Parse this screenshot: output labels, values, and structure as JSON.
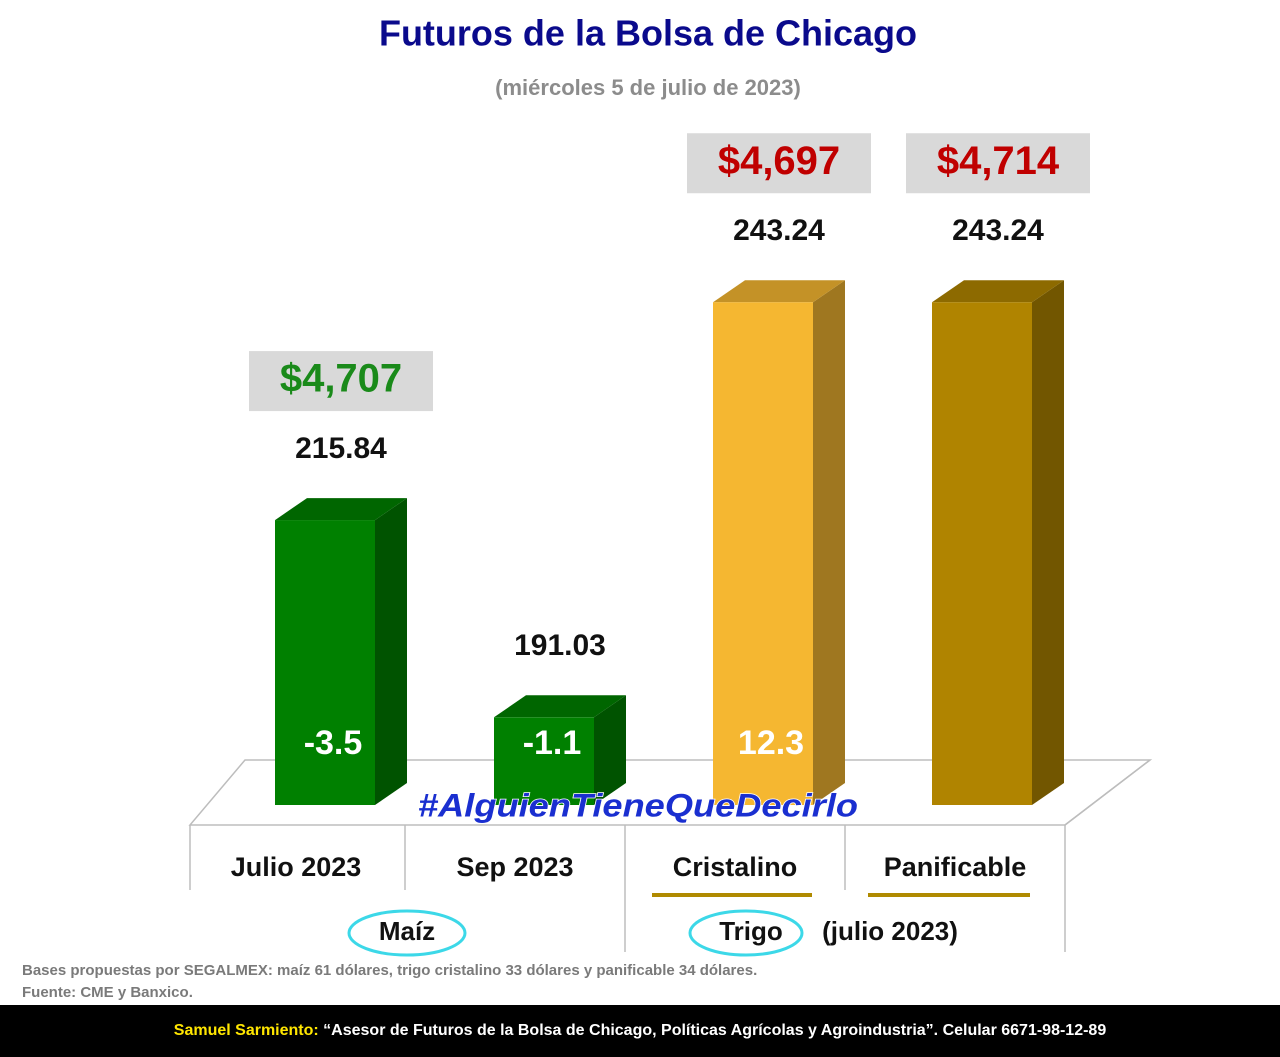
{
  "chart_data": {
    "type": "bar3d",
    "title": "Futuros de la Bolsa de Chicago",
    "subtitle": "(miércoles 5 de julio de 2023)",
    "categories": [
      "Julio 2023",
      "Sep 2023",
      "Cristalino",
      "Panificable"
    ],
    "values": [
      215.84,
      191.03,
      243.24,
      243.24
    ],
    "colors": [
      "#008000",
      "#008000",
      "#f5b731",
      "#b08400"
    ],
    "changes": [
      -3.5,
      -1.1,
      12.3,
      null
    ],
    "prices": [
      4707,
      null,
      4697,
      4714
    ],
    "price_labels": [
      "$4,707",
      null,
      "$4,697",
      "$4,714"
    ],
    "price_colors": [
      "#1a8a1a",
      null,
      "#c00000",
      "#c00000"
    ],
    "ylim": [
      180,
      250
    ],
    "groups": [
      "Maíz",
      "Trigo",
      "(julio 2023)"
    ],
    "hashtag": "#AlguienTieneQueDecirlo",
    "notes": [
      "Bases propuestas por SEGALMEX: maíz 61 dólares, trigo cristalino 33 dólares y panificable 34 dólares.",
      "Fuente: CME y Banxico."
    ],
    "footer": {
      "author": "Samuel Sarmiento:",
      "text": " “Asesor de Futuros de la Bolsa de Chicago, Políticas Agrícolas y Agroindustria”. Celular 6671-98-12-89"
    }
  }
}
